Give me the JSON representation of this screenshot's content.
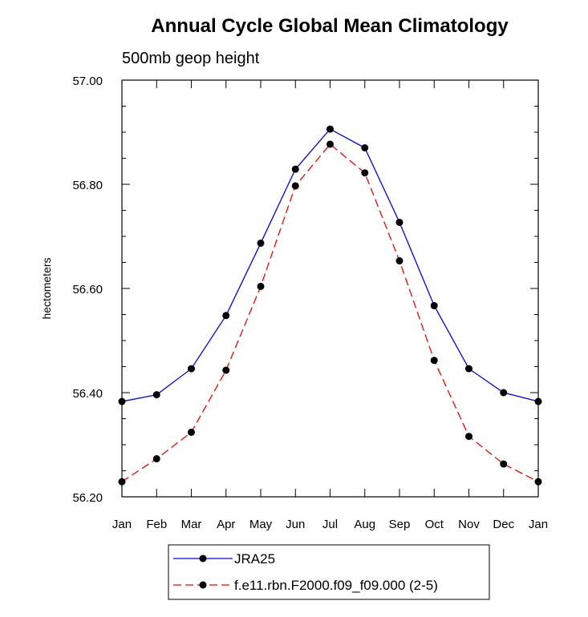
{
  "chart_data": {
    "type": "line",
    "title": "Annual Cycle Global Mean Climatology",
    "subtitle": "500mb geop height",
    "xlabel": "",
    "ylabel": "hectometers",
    "categories": [
      "Jan",
      "Feb",
      "Mar",
      "Apr",
      "May",
      "Jun",
      "Jul",
      "Aug",
      "Sep",
      "Oct",
      "Nov",
      "Dec",
      "Jan"
    ],
    "ylim": [
      56.2,
      57.0
    ],
    "yticks": [
      56.2,
      56.4,
      56.6,
      56.8,
      57.0
    ],
    "ytick_labels": [
      "56.20",
      "56.40",
      "56.60",
      "56.80",
      "57.00"
    ],
    "grid": false,
    "legend_position": "bottom",
    "series": [
      {
        "name": "JRA25",
        "color": "#0000ff",
        "line_style": "solid",
        "marker": "filled-circle",
        "values": [
          56.383,
          56.396,
          56.446,
          56.548,
          56.687,
          56.829,
          56.906,
          56.87,
          56.727,
          56.567,
          56.446,
          56.4,
          56.383
        ]
      },
      {
        "name": "f.e11.rbn.F2000.f09_f09.000 (2-5)",
        "color": "#ff0000",
        "line_style": "dashed",
        "marker": "filled-circle",
        "values": [
          56.229,
          56.273,
          56.324,
          56.443,
          56.604,
          56.797,
          56.877,
          56.822,
          56.653,
          56.462,
          56.316,
          56.263,
          56.229
        ]
      }
    ]
  }
}
